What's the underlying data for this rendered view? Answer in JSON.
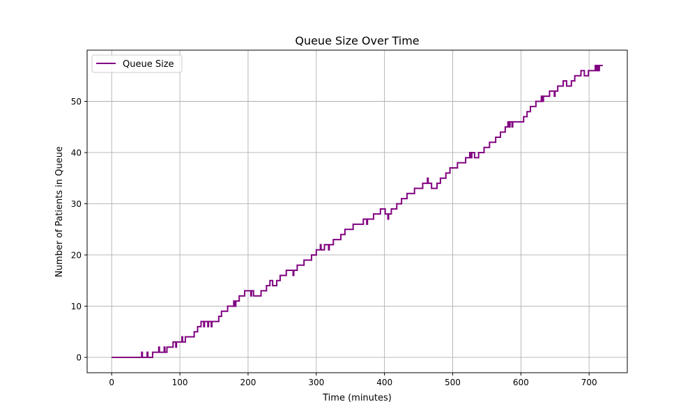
{
  "chart_data": {
    "type": "line",
    "title": "Queue Size Over Time",
    "xlabel": "Time (minutes)",
    "ylabel": "Number of Patients in Queue",
    "xlim": [
      -36,
      756
    ],
    "ylim": [
      -3,
      60
    ],
    "xticks": [
      0,
      100,
      200,
      300,
      400,
      500,
      600,
      700
    ],
    "yticks": [
      0,
      10,
      20,
      30,
      40,
      50
    ],
    "xtick_labels": [
      "0",
      "100",
      "200",
      "300",
      "400",
      "500",
      "600",
      "700"
    ],
    "ytick_labels": [
      "0",
      "10",
      "20",
      "30",
      "40",
      "50"
    ],
    "grid": true,
    "legend": {
      "position": "top-left",
      "entries": [
        "Queue Size"
      ]
    },
    "series": [
      {
        "name": "Queue Size",
        "color": "#800080",
        "step": "post",
        "points": [
          [
            0,
            0
          ],
          [
            44,
            1
          ],
          [
            45,
            0
          ],
          [
            52,
            1
          ],
          [
            53,
            0
          ],
          [
            60,
            1
          ],
          [
            69,
            2
          ],
          [
            70,
            1
          ],
          [
            77,
            2
          ],
          [
            78,
            1
          ],
          [
            81,
            2
          ],
          [
            90,
            3
          ],
          [
            94,
            2
          ],
          [
            95,
            3
          ],
          [
            103,
            4
          ],
          [
            104,
            3
          ],
          [
            108,
            4
          ],
          [
            121,
            5
          ],
          [
            126,
            6
          ],
          [
            131,
            7
          ],
          [
            135,
            6
          ],
          [
            136,
            7
          ],
          [
            141,
            6
          ],
          [
            142,
            7
          ],
          [
            146,
            6
          ],
          [
            147,
            7
          ],
          [
            157,
            8
          ],
          [
            161,
            9
          ],
          [
            170,
            10
          ],
          [
            179,
            11
          ],
          [
            181,
            10
          ],
          [
            182,
            11
          ],
          [
            187,
            12
          ],
          [
            195,
            13
          ],
          [
            204,
            12
          ],
          [
            205,
            13
          ],
          [
            208,
            12
          ],
          [
            219,
            13
          ],
          [
            227,
            14
          ],
          [
            232,
            15
          ],
          [
            236,
            14
          ],
          [
            242,
            15
          ],
          [
            247,
            16
          ],
          [
            256,
            17
          ],
          [
            266,
            16
          ],
          [
            267,
            17
          ],
          [
            272,
            18
          ],
          [
            282,
            19
          ],
          [
            293,
            20
          ],
          [
            300,
            21
          ],
          [
            306,
            22
          ],
          [
            307,
            21
          ],
          [
            312,
            22
          ],
          [
            318,
            21
          ],
          [
            319,
            22
          ],
          [
            325,
            23
          ],
          [
            336,
            24
          ],
          [
            342,
            25
          ],
          [
            354,
            26
          ],
          [
            369,
            27
          ],
          [
            374,
            26
          ],
          [
            375,
            27
          ],
          [
            384,
            28
          ],
          [
            394,
            29
          ],
          [
            401,
            28
          ],
          [
            405,
            27
          ],
          [
            406,
            28
          ],
          [
            410,
            29
          ],
          [
            418,
            30
          ],
          [
            425,
            31
          ],
          [
            433,
            32
          ],
          [
            444,
            33
          ],
          [
            456,
            34
          ],
          [
            463,
            35
          ],
          [
            464,
            34
          ],
          [
            469,
            33
          ],
          [
            477,
            34
          ],
          [
            482,
            35
          ],
          [
            490,
            36
          ],
          [
            496,
            37
          ],
          [
            507,
            38
          ],
          [
            519,
            39
          ],
          [
            525,
            40
          ],
          [
            527,
            39
          ],
          [
            528,
            40
          ],
          [
            532,
            39
          ],
          [
            538,
            40
          ],
          [
            546,
            41
          ],
          [
            554,
            42
          ],
          [
            563,
            43
          ],
          [
            570,
            44
          ],
          [
            577,
            45
          ],
          [
            581,
            46
          ],
          [
            583,
            45
          ],
          [
            584,
            46
          ],
          [
            587,
            45
          ],
          [
            588,
            46
          ],
          [
            604,
            47
          ],
          [
            609,
            48
          ],
          [
            614,
            49
          ],
          [
            622,
            50
          ],
          [
            630,
            51
          ],
          [
            632,
            50
          ],
          [
            633,
            51
          ],
          [
            642,
            52
          ],
          [
            649,
            51
          ],
          [
            650,
            52
          ],
          [
            654,
            53
          ],
          [
            662,
            54
          ],
          [
            667,
            53
          ],
          [
            674,
            54
          ],
          [
            679,
            55
          ],
          [
            688,
            56
          ],
          [
            693,
            55
          ],
          [
            699,
            56
          ],
          [
            709,
            57
          ],
          [
            711,
            56
          ],
          [
            712,
            57
          ],
          [
            714,
            56
          ],
          [
            715,
            57
          ],
          [
            720,
            57
          ]
        ]
      }
    ]
  }
}
